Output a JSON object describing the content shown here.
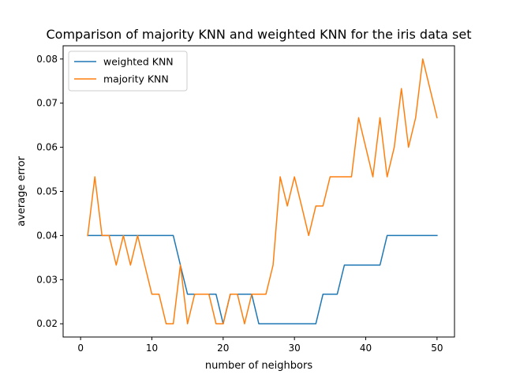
{
  "chart_data": {
    "type": "line",
    "title": "Comparison of majority KNN and weighted KNN for the iris data set",
    "xlabel": "number of neighbors",
    "ylabel": "average error",
    "xlim": [
      -2.45,
      52.45
    ],
    "ylim": [
      0.017,
      0.083
    ],
    "xticks": [
      0,
      10,
      20,
      30,
      40,
      50
    ],
    "xtick_labels": [
      "0",
      "10",
      "20",
      "30",
      "40",
      "50"
    ],
    "yticks": [
      0.02,
      0.03,
      0.04,
      0.05,
      0.06,
      0.07,
      0.08
    ],
    "ytick_labels": [
      "0.02",
      "0.03",
      "0.04",
      "0.05",
      "0.06",
      "0.07",
      "0.08"
    ],
    "grid": false,
    "legend_position": "top-left",
    "x": [
      1,
      2,
      3,
      4,
      5,
      6,
      7,
      8,
      9,
      10,
      11,
      12,
      13,
      14,
      15,
      16,
      17,
      18,
      19,
      20,
      21,
      22,
      23,
      24,
      25,
      26,
      27,
      28,
      29,
      30,
      31,
      32,
      33,
      34,
      35,
      36,
      37,
      38,
      39,
      40,
      41,
      42,
      43,
      44,
      45,
      46,
      47,
      48,
      49,
      50
    ],
    "series": [
      {
        "name": "weighted KNN",
        "color": "#1f77b4",
        "values": [
          0.04,
          0.04,
          0.04,
          0.04,
          0.04,
          0.04,
          0.04,
          0.04,
          0.04,
          0.04,
          0.04,
          0.04,
          0.04,
          0.0333,
          0.0267,
          0.0267,
          0.0267,
          0.0267,
          0.0267,
          0.02,
          0.0267,
          0.0267,
          0.0267,
          0.0267,
          0.02,
          0.02,
          0.02,
          0.02,
          0.02,
          0.02,
          0.02,
          0.02,
          0.02,
          0.0267,
          0.0267,
          0.0267,
          0.0333,
          0.0333,
          0.0333,
          0.0333,
          0.0333,
          0.0333,
          0.04,
          0.04,
          0.04,
          0.04,
          0.04,
          0.04,
          0.04,
          0.04
        ]
      },
      {
        "name": "majority KNN",
        "color": "#ff7f0e",
        "values": [
          0.04,
          0.0533,
          0.04,
          0.04,
          0.0333,
          0.04,
          0.0333,
          0.04,
          0.0333,
          0.0267,
          0.0267,
          0.02,
          0.02,
          0.0333,
          0.02,
          0.0267,
          0.0267,
          0.0267,
          0.02,
          0.02,
          0.0267,
          0.0267,
          0.02,
          0.0267,
          0.0267,
          0.0267,
          0.0333,
          0.0533,
          0.0467,
          0.0533,
          0.0467,
          0.04,
          0.0467,
          0.0467,
          0.0533,
          0.0533,
          0.0533,
          0.0533,
          0.0667,
          0.06,
          0.0533,
          0.0667,
          0.0533,
          0.06,
          0.0733,
          0.06,
          0.0667,
          0.08,
          0.0733,
          0.0667
        ]
      }
    ]
  }
}
